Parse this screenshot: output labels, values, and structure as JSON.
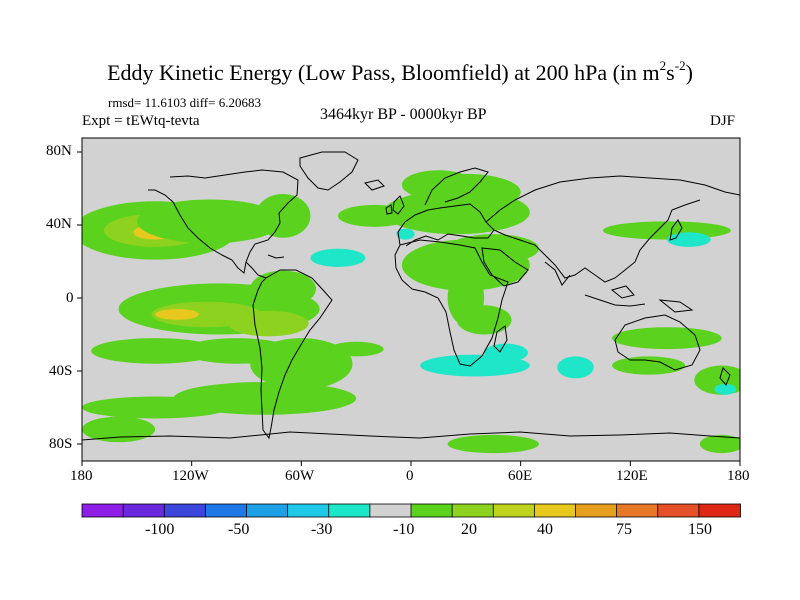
{
  "title": {
    "main": "Eddy Kinetic Energy (Low Pass, Bloomfield) at 200 hPa (in m",
    "sup1": "2",
    "mid": "s",
    "sup2": "-2",
    "end": ")"
  },
  "stats": "rmsd= 11.6103 diff= 6.20683",
  "experiment": "Expt = tEWtq-tevta",
  "period": "3464kyr BP - 0000kyr BP",
  "season": "DJF",
  "lat_labels": [
    "80N",
    "40N",
    "0",
    "40S",
    "80S"
  ],
  "lon_labels": [
    "180",
    "120W",
    "60W",
    "0",
    "60E",
    "120E",
    "180"
  ],
  "colorbar": {
    "colors": [
      "#8c1ee6",
      "#6a28dc",
      "#3c46dc",
      "#1e78e6",
      "#1ea0e6",
      "#1ec8e6",
      "#1ee6c8",
      "#d2d2d2",
      "#5ad21e",
      "#8cd21e",
      "#bed21e",
      "#e6c81e",
      "#e6a01e",
      "#e67828",
      "#e65028",
      "#dc2814"
    ],
    "labels": [
      "-100",
      "-50",
      "-30",
      "-10",
      "20",
      "40",
      "75",
      "150"
    ]
  },
  "map": {
    "background_color": "#d2d2d2",
    "regions": [
      {
        "shape": "ellipse",
        "cx": -140,
        "cy": 37,
        "rx": 45,
        "ry": 16,
        "level": "20"
      },
      {
        "shape": "ellipse",
        "cx": -140,
        "cy": 37,
        "rx": 28,
        "ry": 9,
        "level": "40"
      },
      {
        "shape": "ellipse",
        "cx": -140,
        "cy": 36,
        "rx": 12,
        "ry": 4,
        "level": "75"
      },
      {
        "shape": "ellipse",
        "cx": -110,
        "cy": 42,
        "rx": 40,
        "ry": 12,
        "level": "20"
      },
      {
        "shape": "ellipse",
        "cx": -70,
        "cy": 45,
        "rx": 15,
        "ry": 12,
        "level": "20"
      },
      {
        "shape": "ellipse",
        "cx": -105,
        "cy": -6,
        "rx": 55,
        "ry": 14,
        "level": "20"
      },
      {
        "shape": "ellipse",
        "cx": -112,
        "cy": -9,
        "rx": 30,
        "ry": 7,
        "level": "40"
      },
      {
        "shape": "ellipse",
        "cx": -128,
        "cy": -9,
        "rx": 12,
        "ry": 3,
        "level": "75"
      },
      {
        "shape": "ellipse",
        "cx": -78,
        "cy": -14,
        "rx": 22,
        "ry": 7,
        "level": "40"
      },
      {
        "shape": "ellipse",
        "cx": -140,
        "cy": -29,
        "rx": 35,
        "ry": 7,
        "level": "20"
      },
      {
        "shape": "ellipse",
        "cx": -95,
        "cy": -29,
        "rx": 30,
        "ry": 7,
        "level": "20"
      },
      {
        "shape": "ellipse",
        "cx": -60,
        "cy": -36,
        "rx": 28,
        "ry": 14,
        "level": "20"
      },
      {
        "shape": "ellipse",
        "cx": -140,
        "cy": -60,
        "rx": 40,
        "ry": 6,
        "level": "20"
      },
      {
        "shape": "ellipse",
        "cx": -80,
        "cy": -55,
        "rx": 50,
        "ry": 9,
        "level": "20"
      },
      {
        "shape": "ellipse",
        "cx": -160,
        "cy": -72,
        "rx": 20,
        "ry": 7,
        "level": "20"
      },
      {
        "shape": "ellipse",
        "cx": -30,
        "cy": -28,
        "rx": 15,
        "ry": 4,
        "level": "20"
      },
      {
        "shape": "ellipse",
        "cx": -70,
        "cy": 5,
        "rx": 18,
        "ry": 10,
        "level": "20"
      },
      {
        "shape": "ellipse",
        "cx": -20,
        "cy": 45,
        "rx": 20,
        "ry": 6,
        "level": "20"
      },
      {
        "shape": "ellipse",
        "cx": 25,
        "cy": 47,
        "rx": 40,
        "ry": 12,
        "level": "20"
      },
      {
        "shape": "ellipse",
        "cx": 15,
        "cy": 62,
        "rx": 20,
        "ry": 8,
        "level": "20"
      },
      {
        "shape": "ellipse",
        "cx": 30,
        "cy": 58,
        "rx": 30,
        "ry": 10,
        "level": "20"
      },
      {
        "shape": "ellipse",
        "cx": 30,
        "cy": 18,
        "rx": 35,
        "ry": 14,
        "level": "20"
      },
      {
        "shape": "ellipse",
        "cx": 45,
        "cy": 27,
        "rx": 25,
        "ry": 8,
        "level": "20"
      },
      {
        "shape": "ellipse",
        "cx": 40,
        "cy": -12,
        "rx": 15,
        "ry": 8,
        "level": "20"
      },
      {
        "shape": "ellipse",
        "cx": 30,
        "cy": 0,
        "rx": 10,
        "ry": 15,
        "level": "20"
      },
      {
        "shape": "ellipse",
        "cx": 45,
        "cy": -80,
        "rx": 25,
        "ry": 5,
        "level": "20"
      },
      {
        "shape": "ellipse",
        "cx": 140,
        "cy": 37,
        "rx": 35,
        "ry": 5,
        "level": "20"
      },
      {
        "shape": "ellipse",
        "cx": 140,
        "cy": -22,
        "rx": 30,
        "ry": 6,
        "level": "20"
      },
      {
        "shape": "ellipse",
        "cx": 130,
        "cy": -37,
        "rx": 20,
        "ry": 5,
        "level": "20"
      },
      {
        "shape": "ellipse",
        "cx": 170,
        "cy": -45,
        "rx": 15,
        "ry": 8,
        "level": "20"
      },
      {
        "shape": "ellipse",
        "cx": 170,
        "cy": -80,
        "rx": 12,
        "ry": 5,
        "level": "20"
      },
      {
        "shape": "ellipse",
        "cx": 172,
        "cy": -50,
        "rx": 6,
        "ry": 3,
        "level": "-10"
      },
      {
        "shape": "ellipse",
        "cx": -40,
        "cy": 22,
        "rx": 15,
        "ry": 5,
        "level": "-10"
      },
      {
        "shape": "ellipse",
        "cx": 90,
        "cy": -38,
        "rx": 10,
        "ry": 6,
        "level": "-10"
      },
      {
        "shape": "ellipse",
        "cx": 35,
        "cy": -37,
        "rx": 30,
        "ry": 6,
        "level": "-10"
      },
      {
        "shape": "ellipse",
        "cx": 52,
        "cy": -30,
        "rx": 12,
        "ry": 5,
        "level": "-10"
      },
      {
        "shape": "ellipse",
        "cx": 152,
        "cy": 32,
        "rx": 12,
        "ry": 4,
        "level": "-10"
      },
      {
        "shape": "ellipse",
        "cx": -3,
        "cy": 35,
        "rx": 5,
        "ry": 3,
        "level": "-10"
      }
    ]
  }
}
